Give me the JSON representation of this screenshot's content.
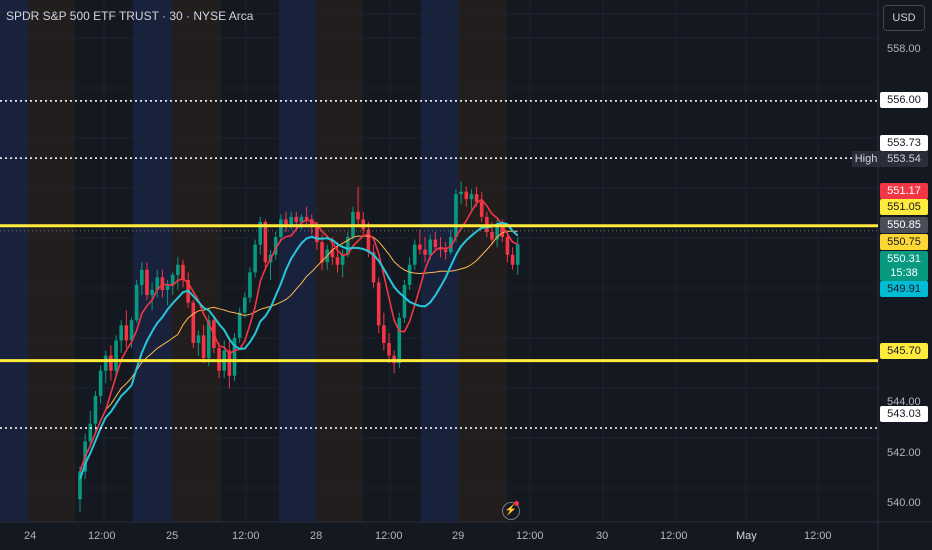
{
  "header": {
    "symbol_title": "SPDR S&P 500 ETF TRUST · 30 · NYSE Arca",
    "currency_button": "USD"
  },
  "price_axis": {
    "ticks": [
      "558.00",
      "546.00",
      "544.00",
      "542.00",
      "540.00"
    ],
    "labels": [
      {
        "text": "556.00",
        "price": 556.0,
        "bg": "#ffffff",
        "fg": "#131722"
      },
      {
        "text": "553.73",
        "price": 553.73,
        "bg": "#ffffff",
        "fg": "#131722"
      },
      {
        "text": "553.54",
        "price": 553.54,
        "bg": "#2a2e39",
        "fg": "#d1d4dc"
      },
      {
        "text": "551.17",
        "price": 551.17,
        "bg": "#f23645",
        "fg": "#ffffff"
      },
      {
        "text": "551.05",
        "price": 551.05,
        "bg": "#ffeb3b",
        "fg": "#131722"
      },
      {
        "text": "550.85",
        "price": 550.85,
        "bg": "#4a4e59",
        "fg": "#ffffff"
      },
      {
        "text": "550.75",
        "price": 550.75,
        "bg": "#fdd835",
        "fg": "#131722"
      },
      {
        "text": "550.31",
        "price": 550.31,
        "bg": "#089981",
        "fg": "#ffffff"
      },
      {
        "text": "15:38",
        "price": 549.95,
        "bg": "#089981",
        "fg": "#ffffff"
      },
      {
        "text": "549.91",
        "price": 549.91,
        "bg": "#00bcd4",
        "fg": "#131722"
      },
      {
        "text": "545.70",
        "price": 545.7,
        "bg": "#ffeb3b",
        "fg": "#131722"
      },
      {
        "text": "543.03",
        "price": 543.03,
        "bg": "#ffffff",
        "fg": "#131722"
      }
    ],
    "high_label": "High"
  },
  "time_axis": {
    "labels": [
      "24",
      "12:00",
      "25",
      "12:00",
      "28",
      "12:00",
      "29",
      "12:00",
      "30",
      "12:00",
      "May",
      "12:00"
    ]
  },
  "chart_data": {
    "type": "candlestick",
    "title": "SPDR S&P 500 ETF TRUST · 30 · NYSE Arca",
    "ylim": [
      539.3,
      560.0
    ],
    "y_ticks": [
      540,
      542,
      544,
      546,
      558
    ],
    "horizontal_levels": [
      {
        "price": 556.0,
        "style": "dotted",
        "color": "#ffffff"
      },
      {
        "price": 553.73,
        "style": "dotted",
        "color": "#ffffff"
      },
      {
        "price": 551.05,
        "style": "solid",
        "color": "#ffeb3b"
      },
      {
        "price": 545.7,
        "style": "solid",
        "color": "#ffeb3b"
      },
      {
        "price": 543.03,
        "style": "dotted",
        "color": "#ffffff"
      }
    ],
    "colors": {
      "up": "#089981",
      "down": "#f23645",
      "ma_fast": "#f23645",
      "ma_slow": "#ffb74d",
      "ma_step": "#26c6da"
    },
    "candles": [
      [
        540.2,
        541.5,
        539.7,
        541.3
      ],
      [
        541.3,
        542.8,
        541.0,
        542.5
      ],
      [
        542.5,
        543.7,
        542.3,
        543.2
      ],
      [
        543.2,
        544.5,
        542.8,
        544.3
      ],
      [
        544.3,
        545.5,
        544.0,
        545.3
      ],
      [
        545.3,
        546.1,
        544.8,
        545.9
      ],
      [
        545.9,
        546.3,
        544.9,
        545.3
      ],
      [
        545.3,
        546.7,
        545.1,
        546.5
      ],
      [
        546.5,
        547.3,
        546.0,
        547.1
      ],
      [
        547.1,
        547.7,
        546.2,
        546.5
      ],
      [
        546.5,
        547.4,
        546.2,
        547.3
      ],
      [
        547.3,
        548.9,
        547.2,
        548.7
      ],
      [
        548.7,
        549.6,
        548.3,
        549.3
      ],
      [
        549.3,
        549.6,
        548.1,
        548.3
      ],
      [
        548.3,
        548.8,
        547.7,
        548.5
      ],
      [
        548.5,
        549.3,
        548.2,
        549.0
      ],
      [
        549.0,
        549.3,
        548.2,
        548.5
      ],
      [
        548.5,
        548.9,
        547.9,
        548.7
      ],
      [
        548.7,
        549.2,
        548.3,
        549.1
      ],
      [
        549.1,
        549.8,
        548.5,
        549.5
      ],
      [
        549.5,
        549.7,
        548.6,
        548.9
      ],
      [
        548.9,
        549.2,
        547.8,
        548.0
      ],
      [
        548.0,
        548.1,
        546.2,
        546.4
      ],
      [
        546.4,
        546.9,
        545.9,
        546.7
      ],
      [
        546.7,
        547.1,
        545.6,
        545.8
      ],
      [
        545.8,
        547.5,
        545.5,
        547.3
      ],
      [
        547.3,
        547.4,
        546.0,
        546.2
      ],
      [
        546.2,
        546.4,
        545.0,
        545.3
      ],
      [
        545.3,
        546.5,
        545.0,
        546.1
      ],
      [
        546.1,
        546.6,
        544.6,
        545.1
      ],
      [
        545.1,
        546.8,
        544.9,
        546.6
      ],
      [
        546.6,
        547.8,
        546.4,
        547.6
      ],
      [
        547.6,
        548.4,
        547.4,
        548.2
      ],
      [
        548.2,
        549.4,
        548.0,
        549.2
      ],
      [
        549.2,
        550.5,
        549.0,
        550.3
      ],
      [
        550.3,
        551.4,
        549.9,
        551.2
      ],
      [
        551.2,
        551.3,
        549.3,
        549.6
      ],
      [
        549.6,
        550.1,
        548.9,
        549.9
      ],
      [
        549.9,
        550.8,
        549.7,
        550.6
      ],
      [
        550.6,
        551.5,
        550.4,
        551.3
      ],
      [
        551.3,
        551.6,
        550.8,
        551.1
      ],
      [
        551.1,
        551.6,
        550.9,
        551.4
      ],
      [
        551.4,
        551.6,
        550.9,
        551.2
      ],
      [
        551.2,
        551.5,
        550.9,
        551.4
      ],
      [
        551.4,
        551.8,
        551.0,
        551.3
      ],
      [
        551.3,
        551.5,
        550.7,
        551.0
      ],
      [
        551.0,
        551.2,
        550.1,
        550.4
      ],
      [
        550.4,
        550.7,
        549.3,
        549.6
      ],
      [
        549.6,
        550.3,
        549.3,
        550.1
      ],
      [
        550.1,
        550.6,
        549.5,
        549.8
      ],
      [
        549.8,
        550.4,
        549.2,
        549.5
      ],
      [
        549.5,
        550.1,
        549.0,
        549.9
      ],
      [
        549.9,
        550.8,
        549.8,
        550.6
      ],
      [
        550.6,
        551.8,
        550.5,
        551.6
      ],
      [
        551.6,
        552.6,
        551.1,
        551.3
      ],
      [
        551.3,
        551.6,
        550.6,
        550.9
      ],
      [
        550.9,
        551.2,
        549.8,
        550.0
      ],
      [
        550.0,
        550.3,
        548.6,
        548.8
      ],
      [
        548.8,
        549.0,
        546.8,
        547.1
      ],
      [
        547.1,
        547.6,
        546.1,
        546.4
      ],
      [
        546.4,
        546.8,
        545.6,
        545.9
      ],
      [
        545.9,
        546.1,
        545.2,
        545.6
      ],
      [
        545.6,
        547.6,
        545.4,
        547.4
      ],
      [
        547.4,
        548.9,
        547.2,
        548.7
      ],
      [
        548.7,
        549.8,
        548.5,
        549.5
      ],
      [
        549.5,
        550.5,
        549.3,
        550.3
      ],
      [
        550.3,
        550.9,
        549.9,
        550.1
      ],
      [
        550.1,
        550.6,
        549.6,
        549.9
      ],
      [
        549.9,
        550.7,
        549.7,
        550.5
      ],
      [
        550.5,
        550.8,
        550.0,
        550.2
      ],
      [
        550.2,
        550.6,
        549.8,
        550.1
      ],
      [
        550.1,
        550.4,
        549.7,
        550.0
      ],
      [
        550.0,
        550.9,
        549.9,
        550.6
      ],
      [
        550.6,
        552.5,
        550.4,
        552.3
      ],
      [
        552.3,
        552.8,
        551.9,
        552.4
      ],
      [
        552.4,
        552.6,
        551.8,
        552.1
      ],
      [
        552.1,
        552.5,
        551.7,
        552.3
      ],
      [
        552.3,
        552.6,
        551.8,
        552.0
      ],
      [
        552.0,
        552.4,
        551.2,
        551.4
      ],
      [
        551.4,
        551.6,
        550.6,
        550.8
      ],
      [
        550.8,
        551.2,
        550.3,
        550.5
      ],
      [
        550.5,
        551.3,
        550.2,
        551.1
      ],
      [
        551.1,
        551.3,
        550.4,
        550.6
      ],
      [
        550.6,
        550.8,
        549.6,
        549.9
      ],
      [
        549.9,
        550.2,
        549.3,
        549.5
      ],
      [
        549.5,
        550.6,
        549.1,
        550.31
      ]
    ]
  }
}
